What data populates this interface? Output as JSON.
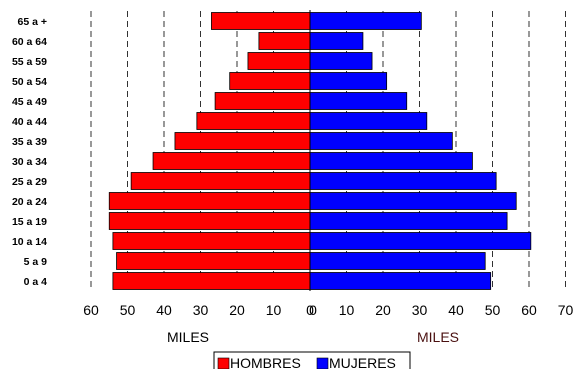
{
  "chart_data": {
    "type": "bar",
    "orientation": "horizontal",
    "categories": [
      "0 a 4",
      "5 a 9",
      "10 a 14",
      "15 a 19",
      "20 a 24",
      "25 a 29",
      "30 a 34",
      "35 a 39",
      "40 a 44",
      "45 a 49",
      "50 a 54",
      "55 a 59",
      "60 a 64",
      "65 a +"
    ],
    "series": [
      {
        "name": "HOMBRES",
        "color": "#ff0000",
        "side": "left",
        "values": [
          54,
          53,
          54,
          55,
          55,
          49,
          43,
          37,
          31,
          26,
          22,
          17,
          14,
          27
        ]
      },
      {
        "name": "MUJERES",
        "color": "#0000ff",
        "side": "right",
        "values": [
          49.5,
          48,
          60.5,
          54,
          56.5,
          51,
          44.5,
          39,
          32,
          26.5,
          21,
          17,
          14.5,
          30.5
        ]
      }
    ],
    "left_ticks": [
      "60",
      "50",
      "40",
      "30",
      "20",
      "10",
      "0"
    ],
    "right_ticks": [
      "0",
      "10",
      "20",
      "30",
      "40",
      "50",
      "60",
      "70"
    ],
    "left_xlim": [
      0,
      60
    ],
    "right_xlim": [
      0,
      70
    ],
    "left_xlabel": "MILES",
    "right_xlabel": "MILES",
    "grid": "vertical dashed",
    "legend_position": "bottom"
  }
}
